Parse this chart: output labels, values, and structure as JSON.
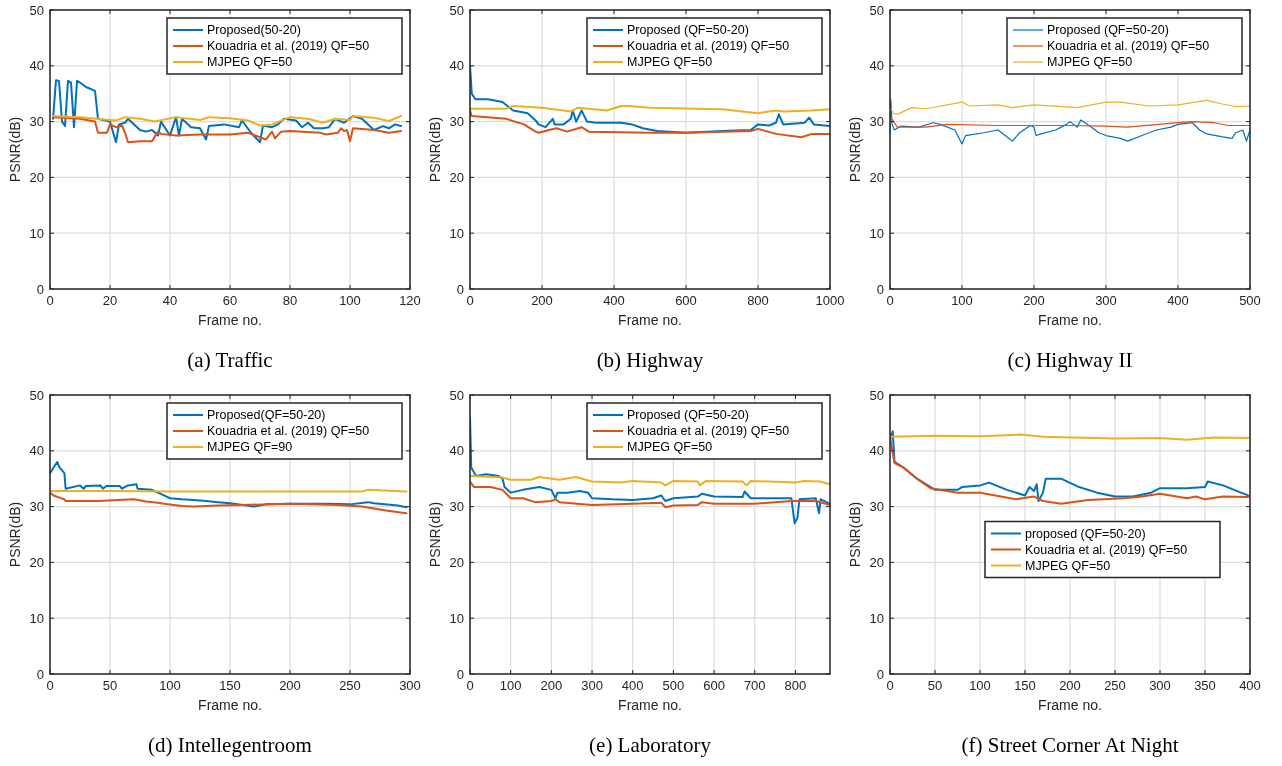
{
  "chart_data": [
    {
      "type": "line",
      "title": "(a) Traffic",
      "xlabel": "Frame no.",
      "ylabel": "PSNR(dB)",
      "xlim": [
        0,
        120
      ],
      "xticks": [
        0,
        20,
        40,
        60,
        80,
        100,
        120
      ],
      "ylim": [
        0,
        50
      ],
      "yticks": [
        0,
        10,
        20,
        30,
        40,
        50
      ],
      "grid": true,
      "legend": "top right",
      "series": [
        {
          "name": "Proposed(50-20)",
          "color": "#0072bd",
          "x": [
            1,
            2,
            3,
            4,
            5,
            6,
            7,
            8,
            9,
            10,
            12,
            15,
            16,
            20,
            22,
            23,
            25,
            26,
            30,
            32,
            34,
            36,
            37,
            40,
            42,
            43,
            44,
            47,
            50,
            52,
            53,
            58,
            63,
            64,
            67,
            70,
            71,
            74,
            76,
            78,
            82,
            84,
            86,
            88,
            91,
            93,
            95,
            98,
            101,
            104,
            108,
            111,
            113,
            115,
            117
          ],
          "values": [
            30.5,
            37.4,
            37.3,
            30,
            29.2,
            37.3,
            37,
            29,
            37.3,
            37,
            36.2,
            35.5,
            30.5,
            30,
            26.3,
            29.5,
            29.8,
            30.5,
            28.5,
            28.2,
            28.5,
            27.5,
            30,
            27.5,
            30.8,
            27.5,
            30.5,
            29,
            28.8,
            26.8,
            29.2,
            29.5,
            29,
            30.2,
            28,
            26.3,
            29.3,
            29,
            29.5,
            30.5,
            30.2,
            29,
            29.8,
            28.8,
            28.8,
            29,
            30.5,
            29.8,
            31,
            30.5,
            28.5,
            29.2,
            28.8,
            29.5,
            29.2
          ]
        },
        {
          "name": "Kouadria et al. (2019) QF=50",
          "color": "#d95319",
          "x": [
            1,
            10,
            15,
            16,
            19,
            20,
            22,
            24,
            25,
            26,
            30,
            34,
            36,
            37,
            42,
            50,
            60,
            66,
            70,
            72,
            74,
            75,
            77,
            80,
            90,
            92,
            96,
            97,
            98,
            99,
            100,
            101,
            108,
            113,
            117
          ],
          "values": [
            30.8,
            30.5,
            30,
            28,
            28,
            29.5,
            29,
            29.3,
            28,
            26.3,
            26.5,
            26.5,
            28.2,
            27.8,
            27.5,
            27.7,
            27.7,
            28,
            27.2,
            26.8,
            28.2,
            27,
            28.2,
            28.3,
            28,
            27.7,
            28,
            28.8,
            28.3,
            28.5,
            26.5,
            28.8,
            28.5,
            28,
            28.3
          ]
        },
        {
          "name": "MJPEG QF=50",
          "color": "#edb120",
          "x": [
            1,
            10,
            20,
            22,
            25,
            30,
            35,
            42,
            50,
            53,
            60,
            66,
            70,
            74,
            80,
            86,
            91,
            95,
            100,
            101,
            108,
            113,
            117
          ],
          "values": [
            31,
            30.8,
            30.3,
            30.2,
            30.8,
            30.5,
            30,
            30.8,
            30.3,
            30.8,
            30.6,
            30.2,
            29.3,
            29.5,
            30.8,
            30.5,
            29.8,
            30.5,
            30.3,
            31,
            30.7,
            30.1,
            31
          ]
        }
      ]
    },
    {
      "type": "line",
      "title": "(b) Highway",
      "xlabel": "Frame no.",
      "ylabel": "PSNR(dB)",
      "xlim": [
        0,
        1000
      ],
      "xticks": [
        0,
        200,
        400,
        600,
        800,
        1000
      ],
      "ylim": [
        0,
        50
      ],
      "yticks": [
        0,
        10,
        20,
        30,
        40,
        50
      ],
      "grid": true,
      "legend": "top right",
      "series": [
        {
          "name": "Proposed (QF=50-20)",
          "color": "#0072bd",
          "x": [
            0,
            5,
            15,
            50,
            90,
            120,
            160,
            185,
            190,
            210,
            230,
            235,
            260,
            280,
            285,
            295,
            310,
            325,
            350,
            420,
            450,
            480,
            520,
            600,
            700,
            780,
            800,
            830,
            850,
            858,
            870,
            930,
            942,
            955,
            1000
          ],
          "values": [
            40,
            35,
            34,
            34,
            33.5,
            32,
            31.5,
            30,
            29.5,
            29,
            30.5,
            29.5,
            29.5,
            30.5,
            32,
            30,
            32,
            30,
            29.8,
            29.8,
            29.5,
            28.8,
            28.3,
            28,
            28.3,
            28.5,
            29.5,
            29.3,
            29.8,
            31.3,
            29.5,
            29.8,
            30.7,
            29.5,
            29.2
          ]
        },
        {
          "name": "Kouadria et al. (2019) QF=50",
          "color": "#d95319",
          "x": [
            0,
            5,
            100,
            150,
            180,
            190,
            220,
            240,
            270,
            310,
            330,
            500,
            600,
            780,
            800,
            850,
            920,
            950,
            1000
          ],
          "values": [
            32,
            31,
            30.5,
            29.5,
            28.3,
            28,
            28.5,
            28.8,
            28.2,
            29,
            28.2,
            28,
            28,
            28.3,
            28.7,
            27.8,
            27.2,
            27.8,
            27.8
          ]
        },
        {
          "name": "MJPEG QF=50",
          "color": "#edb120",
          "x": [
            0,
            100,
            120,
            200,
            280,
            300,
            380,
            420,
            440,
            500,
            700,
            800,
            850,
            870,
            950,
            1000
          ],
          "values": [
            32.3,
            32.3,
            32.8,
            32.5,
            31.8,
            32.5,
            32,
            32.8,
            32.8,
            32.5,
            32.2,
            31.5,
            32,
            31.8,
            32,
            32.2
          ]
        }
      ]
    },
    {
      "type": "line",
      "title": "(c) Highway II",
      "xlabel": "Frame no.",
      "ylabel": "PSNR(dB)",
      "xlim": [
        0,
        500
      ],
      "xticks": [
        0,
        100,
        200,
        300,
        400,
        500
      ],
      "ylim": [
        0,
        50
      ],
      "yticks": [
        0,
        10,
        20,
        30,
        40,
        50
      ],
      "grid": true,
      "legend": "top right",
      "series": [
        {
          "name": "Proposed (QF=50-20)",
          "color": "#0072bd",
          "x": [
            0,
            1,
            3,
            6,
            15,
            40,
            60,
            70,
            90,
            100,
            105,
            130,
            150,
            165,
            170,
            180,
            195,
            200,
            203,
            210,
            230,
            245,
            250,
            260,
            265,
            280,
            290,
            300,
            320,
            330,
            350,
            370,
            390,
            400,
            420,
            430,
            440,
            460,
            475,
            480,
            490,
            495,
            500
          ],
          "values": [
            28,
            34,
            29.5,
            28.5,
            29.2,
            29,
            29.8,
            29.5,
            28.5,
            26,
            27.5,
            28,
            28.5,
            27,
            26.5,
            28,
            29.3,
            29,
            27.5,
            27.8,
            28.5,
            29.5,
            30,
            29,
            30.3,
            29,
            28,
            27.5,
            27,
            26.5,
            27.5,
            28.5,
            29,
            29.5,
            29.8,
            28.5,
            27.8,
            27.3,
            27,
            28,
            28.5,
            26.5,
            28.5
          ]
        },
        {
          "name": "Kouadria et al. (2019) QF=50",
          "color": "#d95319",
          "x": [
            0,
            5,
            10,
            50,
            80,
            150,
            250,
            300,
            330,
            400,
            420,
            450,
            470,
            500
          ],
          "values": [
            31,
            30,
            29,
            29,
            29.5,
            29.3,
            29.3,
            29.2,
            29,
            29.8,
            30,
            29.8,
            29.3,
            29.3
          ]
        },
        {
          "name": "MJPEG QF=50",
          "color": "#edb120",
          "x": [
            0,
            5,
            10,
            30,
            50,
            100,
            110,
            150,
            170,
            200,
            260,
            300,
            320,
            360,
            400,
            440,
            460,
            480,
            500
          ],
          "values": [
            32.5,
            31.5,
            31.3,
            32.5,
            32.3,
            33.5,
            32.8,
            33,
            32.5,
            33,
            32.5,
            33.5,
            33.5,
            32.8,
            33,
            33.8,
            33.2,
            32.7,
            32.8
          ]
        }
      ]
    },
    {
      "type": "line",
      "title": "(d) Intellegentroom",
      "xlabel": "Frame no.",
      "ylabel": "PSNR(dB)",
      "xlim": [
        0,
        300
      ],
      "xticks": [
        0,
        50,
        100,
        150,
        200,
        250,
        300
      ],
      "ylim": [
        0,
        50
      ],
      "yticks": [
        0,
        10,
        20,
        30,
        40,
        50
      ],
      "grid": true,
      "legend": "top right",
      "series": [
        {
          "name": "Proposed(QF=50-20)",
          "color": "#0072bd",
          "x": [
            0,
            3,
            6,
            8,
            12,
            13,
            25,
            28,
            30,
            42,
            44,
            47,
            58,
            60,
            65,
            72,
            73,
            85,
            90,
            95,
            100,
            110,
            120,
            130,
            140,
            150,
            170,
            180,
            200,
            230,
            250,
            265,
            270,
            290,
            297
          ],
          "values": [
            36,
            37,
            38,
            37,
            36,
            33.2,
            33.8,
            33.2,
            33.7,
            33.8,
            33.2,
            33.7,
            33.7,
            33.2,
            33.8,
            34,
            33.2,
            33,
            32.5,
            32,
            31.5,
            31.3,
            31.2,
            31,
            30.8,
            30.6,
            30,
            30.4,
            30.5,
            30.5,
            30.4,
            30.8,
            30.6,
            30.2,
            29.9
          ]
        },
        {
          "name": "Kouadria et al. (2019) QF=50",
          "color": "#d95319",
          "x": [
            0,
            3,
            12,
            13,
            40,
            70,
            80,
            90,
            95,
            110,
            120,
            140,
            160,
            200,
            240,
            260,
            280,
            297
          ],
          "values": [
            32.5,
            32,
            31.3,
            31,
            31,
            31.3,
            30.9,
            30.7,
            30.5,
            30.1,
            30,
            30.2,
            30.3,
            30.5,
            30.3,
            30,
            29.3,
            28.8
          ]
        },
        {
          "name": "MJPEG QF=90",
          "color": "#edb120",
          "x": [
            0,
            50,
            100,
            200,
            260,
            265,
            297
          ],
          "values": [
            32.8,
            32.8,
            32.7,
            32.7,
            32.7,
            33,
            32.7
          ]
        }
      ]
    },
    {
      "type": "line",
      "title": "(e) Laboratory",
      "xlabel": "Frame no.",
      "ylabel": "PSNR(dB)",
      "xlim": [
        0,
        885
      ],
      "xticks": [
        0,
        100,
        200,
        300,
        400,
        500,
        600,
        700,
        800
      ],
      "ylim": [
        0,
        50
      ],
      "yticks": [
        0,
        10,
        20,
        30,
        40,
        50
      ],
      "grid": true,
      "legend": "top right",
      "series": [
        {
          "name": "Proposed (QF=50-20)",
          "color": "#0072bd",
          "x": [
            0,
            3,
            15,
            40,
            70,
            80,
            85,
            100,
            130,
            170,
            200,
            210,
            215,
            240,
            270,
            290,
            300,
            350,
            400,
            450,
            470,
            480,
            500,
            560,
            570,
            600,
            670,
            675,
            690,
            750,
            790,
            798,
            805,
            810,
            850,
            858,
            862,
            885
          ],
          "values": [
            46,
            37,
            35.5,
            35.8,
            35.5,
            35,
            33.5,
            32.5,
            33,
            33.5,
            33,
            31.5,
            32.5,
            32.5,
            32.8,
            32.5,
            31.5,
            31.3,
            31.2,
            31.5,
            32,
            31,
            31.5,
            31.8,
            32.3,
            31.8,
            31.7,
            32.7,
            31.5,
            31.5,
            31.5,
            27,
            28,
            31.3,
            31.5,
            28.8,
            31.3,
            30.5
          ]
        },
        {
          "name": "Kouadria et al. (2019) QF=50",
          "color": "#d95319",
          "x": [
            0,
            10,
            50,
            80,
            100,
            130,
            160,
            200,
            210,
            220,
            300,
            400,
            470,
            480,
            500,
            560,
            570,
            600,
            700,
            790,
            850,
            885
          ],
          "values": [
            34.5,
            33.5,
            33.5,
            33,
            31.5,
            31.5,
            30.8,
            31,
            31.3,
            30.8,
            30.3,
            30.5,
            30.7,
            29.9,
            30.2,
            30.3,
            30.8,
            30.5,
            30.5,
            31,
            31,
            30.3
          ]
        },
        {
          "name": "MJPEG QF=50",
          "color": "#edb120",
          "x": [
            0,
            80,
            100,
            150,
            170,
            220,
            260,
            300,
            370,
            400,
            470,
            480,
            500,
            560,
            565,
            580,
            670,
            680,
            690,
            800,
            820,
            860,
            885
          ],
          "values": [
            35.5,
            35.2,
            34.8,
            34.8,
            35.3,
            34.8,
            35.3,
            34.5,
            34.3,
            34.6,
            34.3,
            33.8,
            34.6,
            34.5,
            33.8,
            34.6,
            34.5,
            33.8,
            34.6,
            34.3,
            34.6,
            34.5,
            34
          ]
        }
      ]
    },
    {
      "type": "line",
      "title": "(f) Street Corner At Night",
      "xlabel": "Frame no.",
      "ylabel": "PSNR(dB)",
      "xlim": [
        0,
        400
      ],
      "xticks": [
        0,
        50,
        100,
        150,
        200,
        250,
        300,
        350,
        400
      ],
      "ylim": [
        0,
        50
      ],
      "yticks": [
        0,
        10,
        20,
        30,
        40,
        50
      ],
      "grid": true,
      "legend": "right",
      "series": [
        {
          "name": "proposed (QF=50-20)",
          "color": "#0072bd",
          "x": [
            0,
            3,
            5,
            15,
            30,
            50,
            75,
            80,
            100,
            110,
            130,
            150,
            155,
            160,
            163,
            165,
            170,
            173,
            190,
            210,
            230,
            250,
            270,
            290,
            300,
            330,
            350,
            353,
            370,
            390,
            398
          ],
          "values": [
            42,
            43.5,
            38,
            37,
            35,
            33,
            33,
            33.5,
            33.8,
            34.3,
            33,
            32,
            33.5,
            32.8,
            34,
            31,
            32.5,
            35,
            35,
            33.5,
            32.5,
            31.8,
            31.8,
            32.5,
            33.3,
            33.3,
            33.5,
            34.5,
            33.8,
            32.5,
            32
          ]
        },
        {
          "name": "Kouadria et al. (2019) QF=50",
          "color": "#d95319",
          "x": [
            0,
            5,
            15,
            30,
            45,
            75,
            100,
            140,
            160,
            170,
            190,
            220,
            260,
            280,
            300,
            330,
            340,
            350,
            370,
            398
          ],
          "values": [
            42.5,
            37.8,
            37,
            35,
            33.3,
            32.5,
            32.5,
            31.3,
            31.8,
            31,
            30.5,
            31.2,
            31.5,
            31.8,
            32.3,
            31.5,
            31.8,
            31.3,
            31.8,
            31.7
          ]
        },
        {
          "name": "MJPEG QF=50",
          "color": "#edb120",
          "x": [
            0,
            50,
            100,
            145,
            170,
            250,
            300,
            330,
            360,
            398
          ],
          "values": [
            42.5,
            42.7,
            42.6,
            42.9,
            42.5,
            42.2,
            42.3,
            42,
            42.4,
            42.3
          ]
        }
      ]
    }
  ]
}
